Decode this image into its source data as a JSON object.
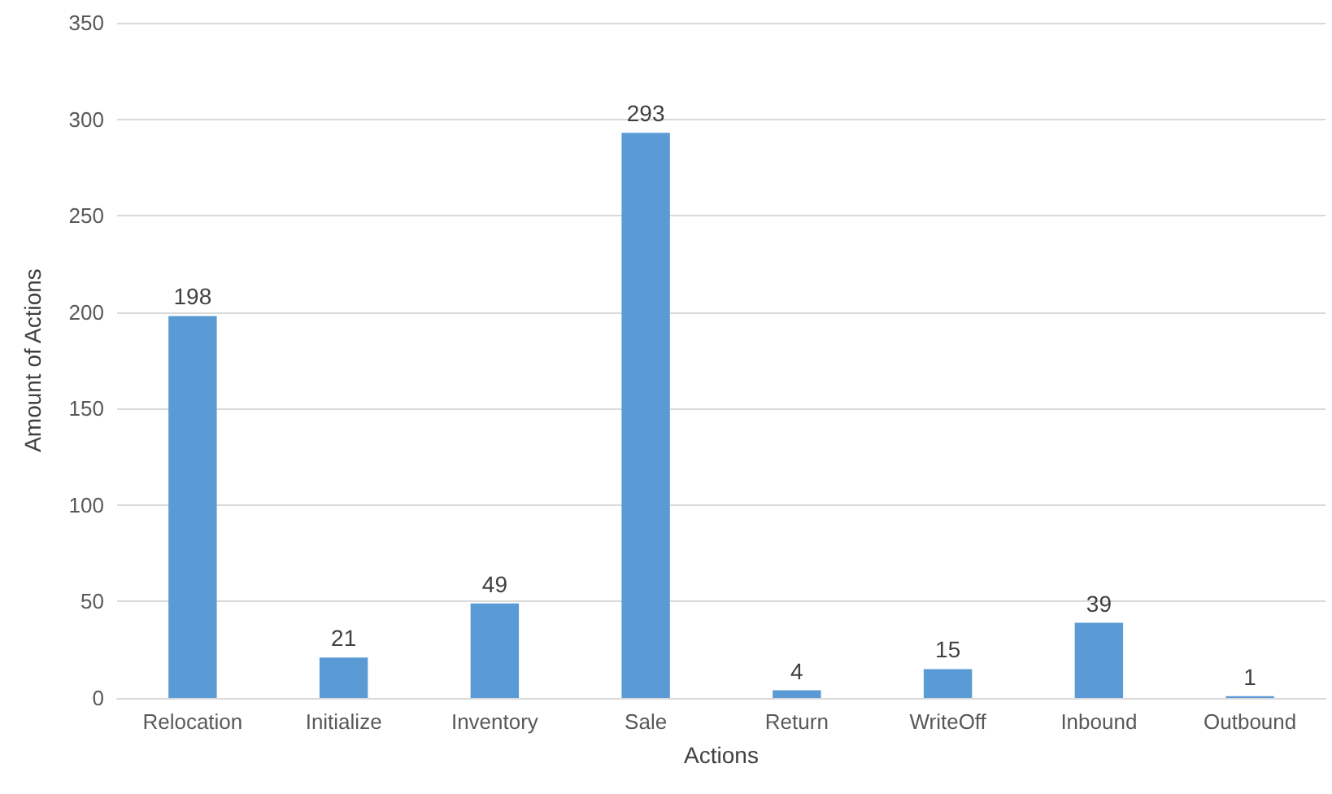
{
  "chart_data": {
    "type": "bar",
    "xlabel": "Actions",
    "ylabel": "Amount of Actions",
    "categories": [
      "Relocation",
      "Initialize",
      "Inventory",
      "Sale",
      "Return",
      "WriteOff",
      "Inbound",
      "Outbound"
    ],
    "values": [
      198,
      21,
      49,
      293,
      4,
      15,
      39,
      1
    ],
    "color": "#5b9bd5",
    "ylim": [
      0,
      350
    ],
    "yticks": [
      0,
      50,
      100,
      150,
      200,
      250,
      300,
      350
    ],
    "grid": "y",
    "data_labels": true
  }
}
